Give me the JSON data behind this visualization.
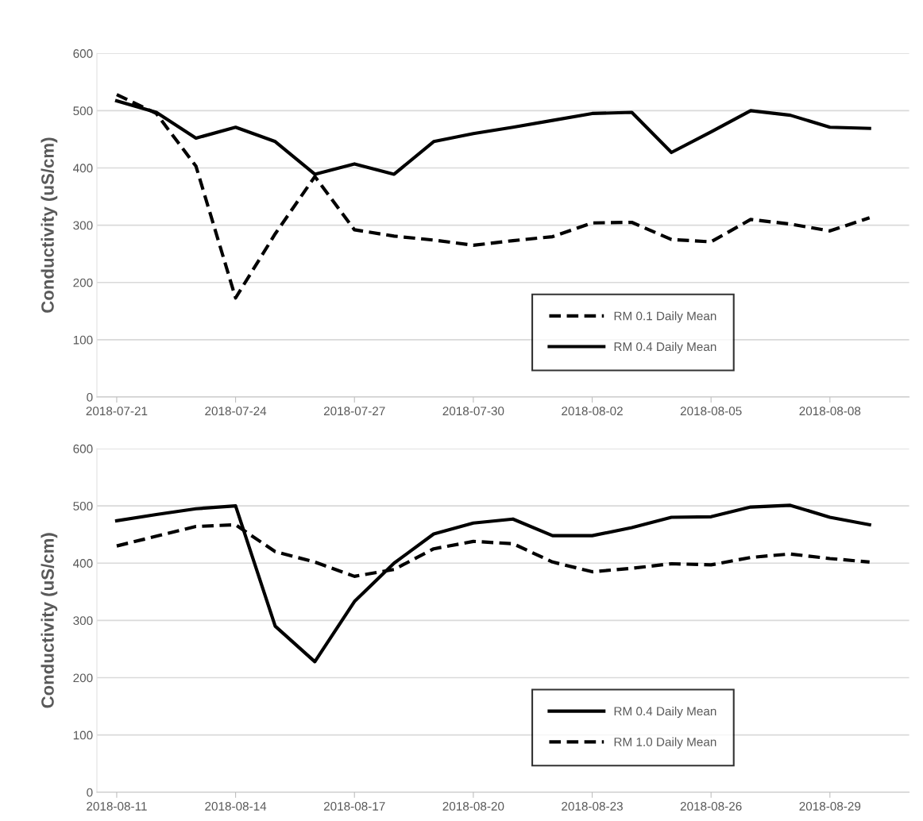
{
  "chart_data": [
    {
      "type": "line",
      "ylabel": "Conductivity (uS/cm)",
      "x": [
        "2018-07-21",
        "2018-07-22",
        "2018-07-23",
        "2018-07-24",
        "2018-07-25",
        "2018-07-26",
        "2018-07-27",
        "2018-07-28",
        "2018-07-29",
        "2018-07-30",
        "2018-07-31",
        "2018-08-01",
        "2018-08-02",
        "2018-08-03",
        "2018-08-04",
        "2018-08-05",
        "2018-08-06",
        "2018-08-07",
        "2018-08-08",
        "2018-08-09"
      ],
      "series": [
        {
          "name": "RM 0.1 Daily Mean",
          "color": "#000000",
          "line_style": "dashed",
          "values": [
            528,
            495,
            403,
            173,
            285,
            385,
            292,
            281,
            274,
            265,
            273,
            280,
            304,
            305,
            275,
            271,
            310,
            302,
            290,
            313
          ]
        },
        {
          "name": "RM 0.4 Daily Mean",
          "color": "#000000",
          "line_style": "solid",
          "values": [
            517,
            497,
            452,
            471,
            446,
            389,
            407,
            389,
            446,
            460,
            471,
            483,
            495,
            497,
            427,
            463,
            500,
            492,
            471,
            469
          ]
        }
      ],
      "xlim": [
        "2018-07-20T12:00",
        "2018-08-10T00:00"
      ],
      "xticks": [
        "2018-07-21",
        "2018-07-24",
        "2018-07-27",
        "2018-07-30",
        "2018-08-02",
        "2018-08-05",
        "2018-08-08"
      ],
      "ylim": [
        0,
        600
      ],
      "yticks": [
        0,
        100,
        200,
        300,
        400,
        500,
        600
      ],
      "grid": "y",
      "legend": "bottom",
      "marker": "none"
    },
    {
      "type": "line",
      "ylabel": "Conductivity (uS/cm)",
      "x": [
        "2018-08-11",
        "2018-08-12",
        "2018-08-13",
        "2018-08-14",
        "2018-08-15",
        "2018-08-16",
        "2018-08-17",
        "2018-08-18",
        "2018-08-19",
        "2018-08-20",
        "2018-08-21",
        "2018-08-22",
        "2018-08-23",
        "2018-08-24",
        "2018-08-25",
        "2018-08-26",
        "2018-08-27",
        "2018-08-28",
        "2018-08-29",
        "2018-08-30"
      ],
      "series": [
        {
          "name": "RM 0.4 Daily Mean",
          "color": "#000000",
          "line_style": "solid",
          "values": [
            474,
            485,
            495,
            500,
            290,
            228,
            333,
            400,
            451,
            470,
            477,
            448,
            448,
            462,
            480,
            481,
            498,
            501,
            480,
            467
          ]
        },
        {
          "name": "RM 1.0 Daily Mean",
          "color": "#000000",
          "line_style": "dashed",
          "values": [
            430,
            447,
            464,
            467,
            420,
            402,
            377,
            389,
            425,
            438,
            434,
            402,
            385,
            391,
            399,
            397,
            410,
            416,
            408,
            402
          ]
        }
      ],
      "xlim": [
        "2018-08-10T12:00",
        "2018-08-31T00:00"
      ],
      "xticks": [
        "2018-08-11",
        "2018-08-14",
        "2018-08-17",
        "2018-08-20",
        "2018-08-23",
        "2018-08-26",
        "2018-08-29"
      ],
      "ylim": [
        0,
        600
      ],
      "yticks": [
        0,
        100,
        200,
        300,
        400,
        500,
        600
      ],
      "grid": "y",
      "legend": "bottom",
      "marker": "none"
    }
  ]
}
